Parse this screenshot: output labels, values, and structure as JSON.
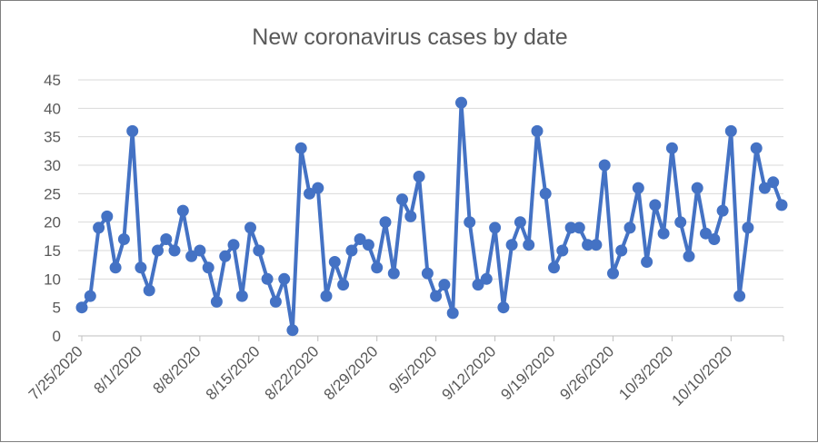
{
  "chart_data": {
    "type": "line",
    "title": "New coronavirus cases by date",
    "xlabel": "",
    "ylabel": "",
    "ylim": [
      0,
      45
    ],
    "y_ticks": [
      0,
      5,
      10,
      15,
      20,
      25,
      30,
      35,
      40,
      45
    ],
    "x_ticks": [
      "7/25/2020",
      "8/1/2020",
      "8/8/2020",
      "8/15/2020",
      "8/22/2020",
      "8/29/2020",
      "9/5/2020",
      "9/12/2020",
      "9/19/2020",
      "9/26/2020",
      "10/3/2020",
      "10/10/2020"
    ],
    "grid": "horizontal",
    "legend": "none",
    "x_start": "7/25/2020",
    "x_end": "10/17/2020",
    "series": [
      {
        "color": "#4472c4",
        "values": [
          5,
          7,
          19,
          21,
          12,
          17,
          36,
          12,
          8,
          15,
          17,
          15,
          22,
          14,
          15,
          12,
          6,
          14,
          16,
          7,
          19,
          15,
          10,
          6,
          10,
          1,
          33,
          25,
          26,
          7,
          13,
          9,
          15,
          17,
          16,
          12,
          20,
          11,
          24,
          21,
          28,
          11,
          7,
          9,
          4,
          41,
          20,
          9,
          10,
          19,
          5,
          16,
          20,
          16,
          36,
          25,
          12,
          15,
          19,
          19,
          16,
          16,
          30,
          11,
          15,
          19,
          26,
          13,
          23,
          18,
          33,
          20,
          14,
          26,
          18,
          17,
          22,
          36,
          7,
          19,
          33,
          26,
          27,
          23
        ]
      }
    ]
  }
}
